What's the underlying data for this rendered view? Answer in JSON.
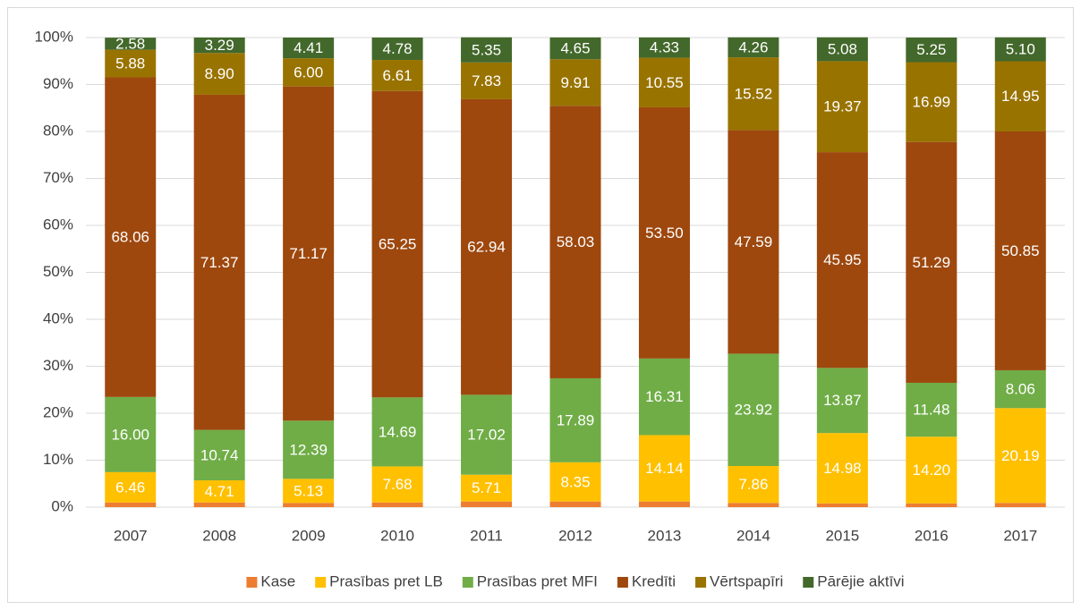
{
  "chart_data": {
    "type": "stacked_bar",
    "categories": [
      "2007",
      "2008",
      "2009",
      "2010",
      "2011",
      "2012",
      "2013",
      "2014",
      "2015",
      "2016",
      "2017"
    ],
    "series": [
      {
        "name": "Kase",
        "color": "#ed7d31",
        "values": [
          1.0,
          1.0,
          0.9,
          1.0,
          1.2,
          1.2,
          1.2,
          0.9,
          0.8,
          0.8,
          0.9
        ]
      },
      {
        "name": "Prasības pret LB",
        "color": "#ffc000",
        "values": [
          6.46,
          4.71,
          5.13,
          7.68,
          5.71,
          8.35,
          14.14,
          7.86,
          14.98,
          14.2,
          20.19
        ],
        "value_labels": [
          "6.46",
          "4.71",
          "5.13",
          "7.68",
          "5.71",
          "8.35",
          "14.14",
          "7.86",
          "14.98",
          "14.20",
          "20.19"
        ]
      },
      {
        "name": "Prasības pret MFI",
        "color": "#70ad47",
        "values": [
          16,
          10.74,
          12.39,
          14.69,
          17.02,
          17.89,
          16.31,
          23.92,
          13.87,
          11.48,
          8.06
        ],
        "value_labels": [
          "16.00",
          "10.74",
          "12.39",
          "14.69",
          "17.02",
          "17.89",
          "16.31",
          "23.92",
          "13.87",
          "11.48",
          "8.06"
        ]
      },
      {
        "name": "Kredīti",
        "color": "#9e480e",
        "values": [
          68.06,
          71.37,
          71.17,
          65.25,
          62.94,
          58.03,
          53.5,
          47.59,
          45.95,
          51.29,
          50.85
        ],
        "value_labels": [
          "68.06",
          "71.37",
          "71.17",
          "65.25",
          "62.94",
          "58.03",
          "53.50",
          "47.59",
          "45.95",
          "51.29",
          "50.85"
        ]
      },
      {
        "name": "Vērtspapīri",
        "color": "#997300",
        "values": [
          5.88,
          8.9,
          6,
          6.61,
          7.83,
          9.91,
          10.55,
          15.52,
          19.37,
          16.99,
          14.95
        ],
        "value_labels": [
          "5.88",
          "8.90",
          "6.00",
          "6.61",
          "7.83",
          "9.91",
          "10.55",
          "15.52",
          "19.37",
          "16.99",
          "14.95"
        ]
      },
      {
        "name": "Pārējie aktīvi",
        "color": "#43682b",
        "values": [
          2.58,
          3.29,
          4.41,
          4.78,
          5.35,
          4.65,
          4.33,
          4.26,
          5.08,
          5.25,
          5.1
        ],
        "value_labels": [
          "2.58",
          "3.29",
          "4.41",
          "4.78",
          "5.35",
          "4.65",
          "4.33",
          "4.26",
          "5.08",
          "5.25",
          "5.10"
        ]
      }
    ],
    "ylim": [
      0,
      100
    ],
    "yticks": [
      {
        "value": 0,
        "label": "0%"
      },
      {
        "value": 10,
        "label": "10%"
      },
      {
        "value": 20,
        "label": "20%"
      },
      {
        "value": 30,
        "label": "30%"
      },
      {
        "value": 40,
        "label": "40%"
      },
      {
        "value": 50,
        "label": "50%"
      },
      {
        "value": 60,
        "label": "60%"
      },
      {
        "value": 70,
        "label": "70%"
      },
      {
        "value": 80,
        "label": "80%"
      },
      {
        "value": 90,
        "label": "90%"
      },
      {
        "value": 100,
        "label": "100%"
      }
    ],
    "grid": true,
    "legend": "bottom"
  }
}
